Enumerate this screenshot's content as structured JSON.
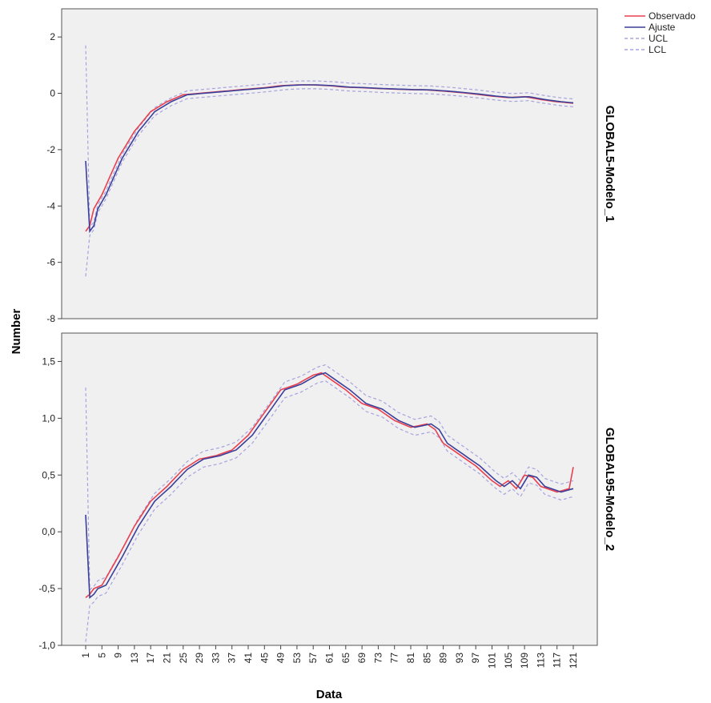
{
  "chart_data": {
    "type": "line",
    "xlabel": "Data",
    "ylabel": "Number",
    "x_tick_labels": [
      "1",
      "5",
      "9",
      "13",
      "17",
      "21",
      "25",
      "29",
      "33",
      "37",
      "41",
      "45",
      "49",
      "53",
      "57",
      "61",
      "65",
      "69",
      "73",
      "77",
      "81",
      "85",
      "89",
      "93",
      "97",
      "101",
      "105",
      "109",
      "113",
      "117",
      "121"
    ],
    "x_range": [
      1,
      121
    ],
    "legend": {
      "placement": "top-right-outside",
      "entries": [
        {
          "name": "Observado",
          "color": "#e8404e",
          "style": "solid"
        },
        {
          "name": "Ajuste",
          "color": "#3b3f9a",
          "style": "solid"
        },
        {
          "name": "UCL",
          "color": "#a6a3e0",
          "style": "dashed"
        },
        {
          "name": "LCL",
          "color": "#a6a3e0",
          "style": "dashed"
        }
      ]
    },
    "panels": [
      {
        "label": "GLOBAL5-Modelo_1",
        "ylim": [
          -8,
          3
        ],
        "yticks": [
          -8,
          -6,
          -4,
          -2,
          0,
          2
        ],
        "ytick_labels": [
          "-8",
          "-6",
          "-4",
          "-2",
          "0",
          "2"
        ],
        "band": 0.14,
        "first_fit": {
          "x": 1,
          "ajuste": -2.4,
          "ucl": 1.7,
          "lcl": -6.5
        },
        "observado_knots": [
          [
            1,
            -4.9
          ],
          [
            2,
            -4.7
          ],
          [
            3,
            -4.1
          ],
          [
            5,
            -3.6
          ],
          [
            9,
            -2.3
          ],
          [
            13,
            -1.35
          ],
          [
            17,
            -0.65
          ],
          [
            21,
            -0.3
          ],
          [
            25,
            -0.05
          ],
          [
            29,
            0.0
          ],
          [
            33,
            0.05
          ],
          [
            37,
            0.1
          ],
          [
            41,
            0.15
          ],
          [
            45,
            0.2
          ],
          [
            49,
            0.27
          ],
          [
            53,
            0.3
          ],
          [
            57,
            0.3
          ],
          [
            61,
            0.27
          ],
          [
            65,
            0.22
          ],
          [
            69,
            0.2
          ],
          [
            73,
            0.17
          ],
          [
            77,
            0.15
          ],
          [
            81,
            0.13
          ],
          [
            85,
            0.12
          ],
          [
            89,
            0.08
          ],
          [
            93,
            0.03
          ],
          [
            97,
            -0.03
          ],
          [
            101,
            -0.1
          ],
          [
            105,
            -0.15
          ],
          [
            109,
            -0.12
          ],
          [
            113,
            -0.22
          ],
          [
            117,
            -0.3
          ],
          [
            121,
            -0.35
          ]
        ]
      },
      {
        "label": "GLOBAL95-Modelo_2",
        "ylim": [
          -1.0,
          1.75
        ],
        "yticks": [
          -1.0,
          -0.5,
          0.0,
          0.5,
          1.0,
          1.5
        ],
        "ytick_labels": [
          "-1,0",
          "-0,5",
          "0,0",
          "0,5",
          "1,0",
          "1,5"
        ],
        "band": 0.07,
        "first_fit": {
          "x": 1,
          "ajuste": 0.15,
          "ucl": 1.27,
          "lcl": -0.97
        },
        "observado_knots": [
          [
            1,
            -0.58
          ],
          [
            2,
            -0.55
          ],
          [
            3,
            -0.5
          ],
          [
            5,
            -0.47
          ],
          [
            9,
            -0.22
          ],
          [
            13,
            0.05
          ],
          [
            17,
            0.27
          ],
          [
            21,
            0.4
          ],
          [
            25,
            0.55
          ],
          [
            29,
            0.64
          ],
          [
            33,
            0.67
          ],
          [
            37,
            0.72
          ],
          [
            41,
            0.85
          ],
          [
            45,
            1.05
          ],
          [
            49,
            1.25
          ],
          [
            53,
            1.3
          ],
          [
            57,
            1.38
          ],
          [
            59,
            1.4
          ],
          [
            61,
            1.35
          ],
          [
            65,
            1.25
          ],
          [
            69,
            1.13
          ],
          [
            73,
            1.08
          ],
          [
            77,
            0.98
          ],
          [
            81,
            0.92
          ],
          [
            85,
            0.95
          ],
          [
            87,
            0.9
          ],
          [
            89,
            0.78
          ],
          [
            93,
            0.68
          ],
          [
            97,
            0.58
          ],
          [
            101,
            0.45
          ],
          [
            103,
            0.4
          ],
          [
            105,
            0.45
          ],
          [
            107,
            0.38
          ],
          [
            109,
            0.5
          ],
          [
            111,
            0.48
          ],
          [
            113,
            0.4
          ],
          [
            117,
            0.35
          ],
          [
            120,
            0.38
          ],
          [
            121,
            0.57
          ]
        ]
      }
    ]
  }
}
